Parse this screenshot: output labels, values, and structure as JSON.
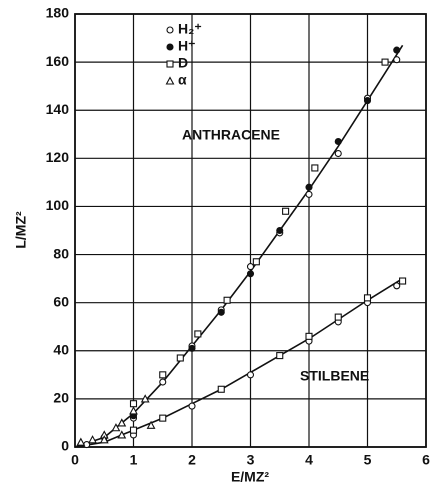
{
  "chart_data": {
    "type": "scatter",
    "xlabel": "E/MZ²",
    "ylabel": "L/MZ²",
    "xlim": [
      0,
      6
    ],
    "ylim": [
      0,
      180
    ],
    "xticks": [
      0,
      1,
      2,
      3,
      4,
      5,
      6
    ],
    "yticks": [
      0,
      20,
      40,
      60,
      80,
      100,
      120,
      140,
      160,
      180
    ],
    "grid": true,
    "legend": "upper-left",
    "color": "#111111",
    "series": [
      {
        "name": "H₂⁺",
        "marker": "circle-open",
        "x": [
          0.2,
          0.5,
          1,
          1.5,
          2,
          2.5,
          3,
          3.5,
          4,
          4.5,
          5,
          5.5,
          1,
          2,
          3,
          4,
          4.5,
          5,
          5.5
        ],
        "y": [
          1,
          4,
          12,
          27,
          42,
          57,
          75,
          89,
          105,
          122,
          145,
          161,
          5,
          17,
          30,
          44,
          52,
          60,
          67
        ]
      },
      {
        "name": "H⁺",
        "marker": "circle-filled",
        "x": [
          0.5,
          1,
          2,
          2.5,
          3,
          3.5,
          4,
          4.5,
          5,
          5.5
        ],
        "y": [
          4,
          13,
          41,
          56,
          72,
          90,
          108,
          127,
          144,
          165
        ]
      },
      {
        "name": "D",
        "marker": "square-open",
        "x": [
          1,
          1.5,
          1.8,
          2.1,
          2.6,
          3.1,
          3.6,
          4.1,
          5.3,
          1,
          1.5,
          2.5,
          3.5,
          4,
          4.5,
          5,
          5.6
        ],
        "y": [
          18,
          30,
          37,
          47,
          61,
          77,
          98,
          116,
          160,
          7,
          12,
          24,
          38,
          46,
          54,
          62,
          69
        ]
      },
      {
        "name": "α",
        "marker": "triangle-open",
        "x": [
          0.1,
          0.3,
          0.5,
          0.7,
          0.8,
          1,
          1.2,
          0.5,
          0.8,
          1.3
        ],
        "y": [
          2,
          3,
          5,
          8,
          10,
          15,
          20,
          3,
          5,
          9
        ]
      }
    ],
    "curves": [
      {
        "name": "ANTHRACENE",
        "x": [
          0,
          0.5,
          1,
          1.5,
          2,
          2.5,
          3,
          3.5,
          4,
          4.5,
          5,
          5.6
        ],
        "y": [
          0,
          4,
          14,
          27,
          42,
          57,
          73,
          90,
          107,
          125,
          144,
          167
        ]
      },
      {
        "name": "STILBENE",
        "x": [
          0,
          0.5,
          1,
          1.5,
          2,
          2.5,
          3,
          3.5,
          4,
          4.5,
          5,
          5.6
        ],
        "y": [
          0,
          2,
          7,
          12,
          18,
          24,
          31,
          38,
          45,
          53,
          61,
          70
        ]
      }
    ]
  }
}
